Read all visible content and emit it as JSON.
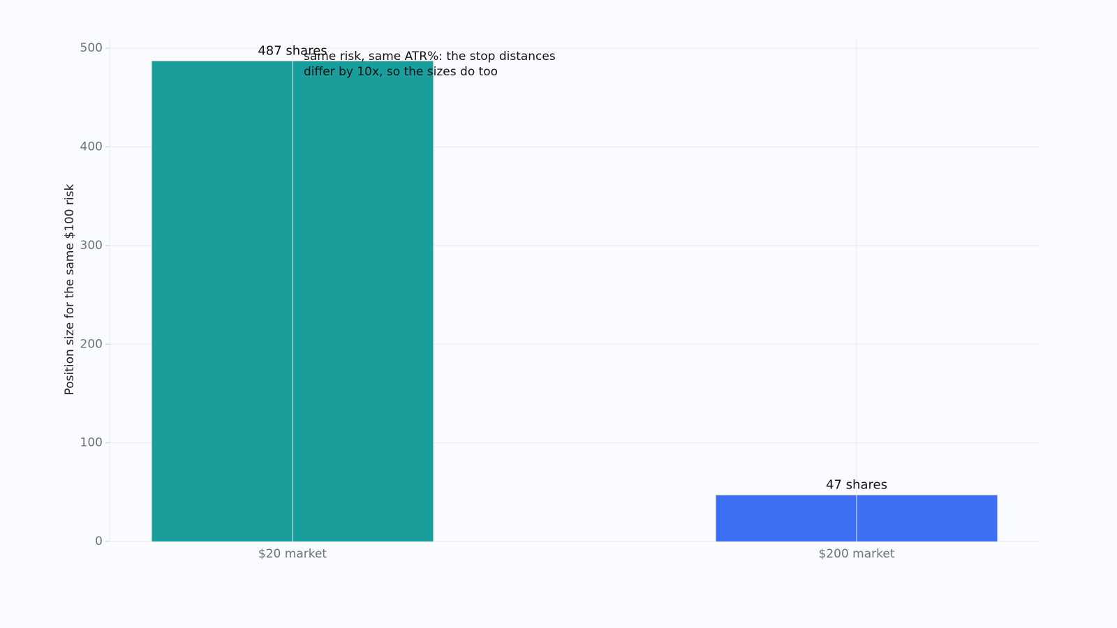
{
  "chart_data": {
    "type": "bar",
    "categories": [
      "$20 market",
      "$200 market"
    ],
    "values": [
      487,
      47
    ],
    "value_labels": [
      "487 shares",
      "47 shares"
    ],
    "colors": [
      "#1a9e9b",
      "#3d6ff2"
    ],
    "y_label": "Position size for the same $100 risk",
    "annotation": [
      "same risk, same ATR%: the stop distances",
      "differ by 10x, so the sizes do too"
    ],
    "ylim": [
      0,
      510
    ],
    "yticks": [
      0,
      100,
      200,
      300,
      400,
      500
    ],
    "grid": true
  }
}
